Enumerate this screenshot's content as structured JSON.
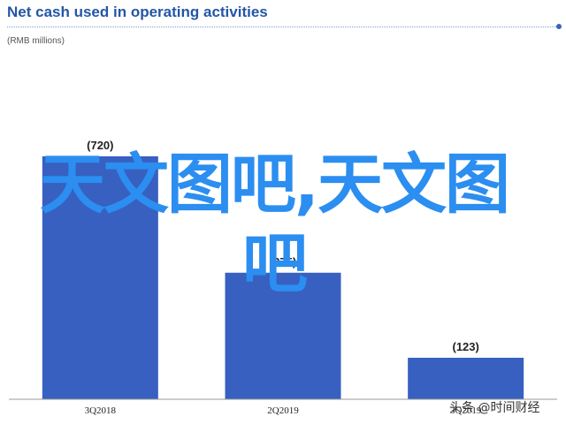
{
  "chart_data": {
    "type": "bar",
    "title": "Net cash used in operating activities",
    "subtitle": "(RMB millions)",
    "categories": [
      "3Q2018",
      "2Q2019",
      "3Q2019"
    ],
    "values": [
      720,
      375,
      123
    ],
    "data_labels": [
      "(720)",
      "(375)",
      "(123)"
    ],
    "ylim": [
      0,
      1000
    ],
    "grid": false,
    "bar_color": "#3760c0",
    "accent_color": "#2456a6"
  },
  "overlay": {
    "watermark_text": "天文图吧,天文图吧",
    "watermark_color": "#2b8ef0",
    "credit": "头条 @时间财经"
  }
}
